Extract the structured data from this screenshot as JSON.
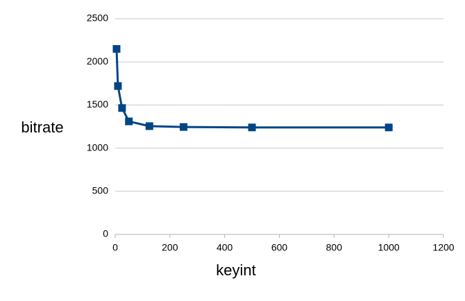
{
  "chart_data": {
    "type": "line",
    "x_label": "keyint",
    "y_label": "bitrate",
    "x": [
      5,
      10,
      25,
      50,
      125,
      250,
      500,
      1000
    ],
    "series": [
      {
        "name": "bitrate",
        "color": "#004586",
        "values": [
          2150,
          1720,
          1465,
          1310,
          1255,
          1245,
          1240,
          1240
        ]
      }
    ],
    "xlim": [
      0,
      1200
    ],
    "xticks": [
      0,
      200,
      400,
      600,
      800,
      1000,
      1200
    ],
    "ylim": [
      0,
      2500
    ],
    "yticks": [
      0,
      500,
      1000,
      1500,
      2000,
      2500
    ],
    "grid": true
  }
}
